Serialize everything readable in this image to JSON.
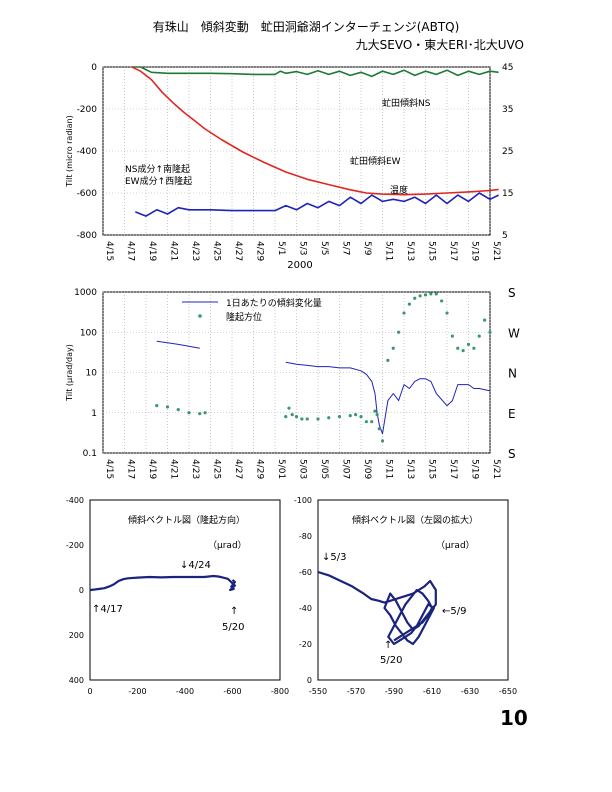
{
  "page": {
    "title": "有珠山　傾斜変動　虻田洞爺湖インターチェンジ(ABTQ)",
    "subtitle": "九大SEVO・東大ERI･北大UVO",
    "page_number": "10"
  },
  "colors": {
    "red": "#e0271f",
    "green": "#1e7a37",
    "blue": "#1f24b8",
    "navy": "#1a237e",
    "teal": "#3a9a6c",
    "gray": "#a9a9a9"
  },
  "chart_data": [
    {
      "type": "line",
      "title": "",
      "xlabel": "2000",
      "ylabel": "Tilt (micro radian)",
      "ylim": [
        -800,
        0
      ],
      "y2lim": [
        5,
        45
      ],
      "grid": true,
      "x_ticks": [
        "4/15",
        "4/17",
        "4/19",
        "4/21",
        "4/23",
        "4/25",
        "4/27",
        "4/29",
        "5/1",
        "5/3",
        "5/5",
        "5/7",
        "5/9",
        "5/11",
        "5/13",
        "5/15",
        "5/17",
        "5/19",
        "5/21"
      ],
      "y_ticks": [
        "0",
        "-200",
        "-400",
        "-600",
        "-800"
      ],
      "y2_ticks": [
        "45",
        "35",
        "25",
        "15",
        "5"
      ],
      "labels": {
        "ns": "虻田傾斜NS",
        "ew": "虻田傾斜EW",
        "temp": "温度",
        "note1": "NS成分↑南隆起",
        "note2": "EW成分↑西隆起"
      },
      "series": [
        {
          "name": "虻田傾斜NS",
          "axis": "left",
          "color": "green",
          "x": [
            16.7,
            17.5,
            18.5,
            20,
            22,
            24,
            26,
            28,
            30,
            30.5,
            31,
            32,
            33,
            34,
            35,
            36,
            37,
            38,
            39,
            40,
            41,
            42,
            43,
            44,
            45,
            46,
            47,
            48,
            49,
            50,
            50.8
          ],
          "y": [
            0,
            0,
            -25,
            -30,
            -30,
            -30,
            -32,
            -35,
            -35,
            -20,
            -30,
            -22,
            -35,
            -18,
            -35,
            -20,
            -40,
            -25,
            -45,
            -20,
            -35,
            -15,
            -40,
            -20,
            -35,
            -15,
            -40,
            -20,
            -35,
            -20,
            -25
          ]
        },
        {
          "name": "虻田傾斜EW",
          "axis": "left",
          "color": "red",
          "x": [
            16.7,
            17.5,
            18.5,
            19.5,
            20.5,
            21.5,
            22.5,
            23.5,
            25,
            27,
            29,
            31,
            33,
            35,
            37,
            38.5,
            40,
            42,
            44,
            46,
            48,
            50,
            50.8
          ],
          "y": [
            0,
            -20,
            -60,
            -120,
            -170,
            -215,
            -255,
            -295,
            -345,
            -405,
            -455,
            -500,
            -535,
            -560,
            -585,
            -600,
            -605,
            -608,
            -605,
            -600,
            -595,
            -588,
            -583
          ]
        },
        {
          "name": "温度",
          "axis": "right",
          "color": "blue",
          "x": [
            17,
            18,
            19,
            20,
            21,
            22,
            24,
            26,
            28,
            30,
            31,
            32,
            33,
            34,
            35,
            36,
            37,
            38,
            39,
            40,
            41,
            42,
            43,
            44,
            45,
            46,
            47,
            48,
            49,
            50,
            50.8
          ],
          "y": [
            10.5,
            9.5,
            11,
            10,
            11.5,
            11,
            11,
            10.8,
            10.8,
            10.8,
            12,
            11,
            12.5,
            11.5,
            13,
            12,
            14,
            12.5,
            14.5,
            13,
            13.5,
            13,
            14,
            12.5,
            14.5,
            12.5,
            14.5,
            13,
            15,
            13.5,
            14.5
          ]
        }
      ]
    },
    {
      "type": "line",
      "title": "",
      "ylabel": "Tilt (μrad/day)",
      "yscale": "log",
      "ylim": [
        0.1,
        1000
      ],
      "grid": true,
      "x_ticks": [
        "4/15",
        "4/17",
        "4/19",
        "4/21",
        "4/23",
        "4/25",
        "4/27",
        "4/29",
        "5/01",
        "5/03",
        "5/05",
        "5/07",
        "5/09",
        "5/11",
        "5/13",
        "5/15",
        "5/17",
        "5/19",
        "5/21"
      ],
      "y_ticks": [
        "1000",
        "100",
        "10",
        "1",
        "0.1"
      ],
      "right_axis_ticks": [
        "S",
        "W",
        "N",
        "E",
        "S"
      ],
      "legend_position": "top",
      "series": [
        {
          "name": "1日あたりの傾斜変化量",
          "color": "blue",
          "style": "line",
          "x": [
            19,
            20,
            21,
            22,
            23,
            31,
            32,
            33,
            34,
            35,
            36,
            37,
            38,
            38.5,
            39,
            39.3,
            39.5,
            39.7,
            40,
            40.5,
            41,
            41.5,
            42,
            42.5,
            43,
            43.5,
            44,
            44.5,
            45,
            46,
            46.5,
            47,
            48,
            48.5,
            49,
            50
          ],
          "y": [
            60,
            55,
            50,
            45,
            40,
            18,
            16,
            15,
            14,
            14,
            13,
            13,
            11,
            9,
            6,
            3,
            1,
            0.5,
            0.3,
            2,
            3,
            2,
            5,
            4,
            6,
            7,
            7,
            6,
            3,
            1.5,
            2,
            5,
            5,
            4,
            4,
            3.5
          ]
        },
        {
          "name": "隆起方位",
          "color": "teal",
          "style": "dots",
          "x": [
            19,
            20,
            21,
            22,
            23,
            23.5,
            31,
            31.3,
            31.6,
            32,
            32.5,
            33,
            34,
            35,
            36,
            37,
            37.5,
            38,
            38.5,
            39,
            39.3,
            39.5,
            39.7,
            40,
            40.5,
            41,
            41.5,
            42,
            42.5,
            43,
            43.5,
            44,
            44.5,
            45,
            45.5,
            46,
            46.5,
            47,
            47.5,
            48,
            48.5,
            49,
            49.5,
            50
          ],
          "y": [
            1.5,
            1.4,
            1.2,
            1.0,
            0.95,
            1.0,
            0.8,
            1.3,
            0.9,
            0.8,
            0.7,
            0.7,
            0.7,
            0.75,
            0.8,
            0.85,
            0.9,
            0.8,
            0.6,
            0.6,
            1.1,
            0.9,
            0.4,
            0.2,
            20,
            40,
            100,
            300,
            500,
            700,
            800,
            850,
            900,
            900,
            600,
            300,
            80,
            40,
            35,
            50,
            40,
            80,
            200,
            100
          ]
        }
      ]
    },
    {
      "type": "scatter",
      "title": "傾斜ベクトル図（隆起方向）",
      "unit": "（μrad）",
      "xlim": [
        0,
        -800
      ],
      "ylim": [
        -400,
        400
      ],
      "x_ticks": [
        "0",
        "-200",
        "-400",
        "-600",
        "-800"
      ],
      "y_ticks": [
        "-400",
        "-200",
        "0",
        "200",
        "400"
      ],
      "annotations": [
        "↑4/17",
        "↓4/24",
        "↑",
        "5/20"
      ],
      "series": [
        {
          "name": "",
          "color": "navy",
          "x": [
            0,
            -20,
            -40,
            -60,
            -80,
            -100,
            -120,
            -140,
            -160,
            -200,
            -250,
            -300,
            -350,
            -380,
            -480,
            -500,
            -520,
            -540,
            -560,
            -580,
            -590,
            -600,
            -610,
            -600,
            -590,
            -605,
            -595,
            -610,
            -600
          ],
          "y": [
            0,
            -2,
            -5,
            -8,
            -15,
            -25,
            -40,
            -48,
            -52,
            -55,
            -58,
            -56,
            -58,
            -58,
            -58,
            -60,
            -62,
            -60,
            -55,
            -50,
            -40,
            -30,
            -20,
            -10,
            0,
            -5,
            -15,
            -35,
            -45
          ]
        }
      ]
    },
    {
      "type": "scatter",
      "title": "傾斜ベクトル図（左図の拡大）",
      "unit": "（μrad）",
      "xlim": [
        -550,
        -650
      ],
      "ylim": [
        -100,
        0
      ],
      "x_ticks": [
        "-550",
        "-570",
        "-590",
        "-610",
        "-630",
        "-650"
      ],
      "y_ticks": [
        "-100",
        "-80",
        "-60",
        "-40",
        "-20",
        "0"
      ],
      "annotations": [
        "↓5/3",
        "←5/9",
        "↑",
        "5/20"
      ],
      "series": [
        {
          "name": "",
          "color": "navy",
          "x": [
            -550,
            -556,
            -562,
            -568,
            -574,
            -578,
            -582,
            -585,
            -588,
            -591,
            -594,
            -597,
            -600,
            -603,
            -606,
            -609,
            -612,
            -612,
            -609,
            -606,
            -603,
            -600,
            -597,
            -594,
            -591,
            -588,
            -585,
            -588,
            -591,
            -594,
            -597,
            -600,
            -603,
            -606,
            -609,
            -611,
            -608,
            -605,
            -602,
            -599,
            -596,
            -593,
            -590,
            -587,
            -590,
            -593,
            -596,
            -599,
            -602,
            -605,
            -608,
            -610,
            -608,
            -605,
            -602,
            -599,
            -596,
            -593,
            -590
          ],
          "y": [
            -60,
            -58,
            -55,
            -52,
            -48,
            -45,
            -44,
            -43,
            -44,
            -45,
            -46,
            -47,
            -48,
            -50,
            -52,
            -55,
            -50,
            -42,
            -38,
            -34,
            -30,
            -28,
            -32,
            -38,
            -44,
            -48,
            -40,
            -36,
            -30,
            -26,
            -22,
            -20,
            -24,
            -30,
            -36,
            -40,
            -42,
            -36,
            -30,
            -26,
            -24,
            -22,
            -20,
            -24,
            -30,
            -36,
            -42,
            -46,
            -50,
            -48,
            -44,
            -40,
            -36,
            -32,
            -30,
            -28,
            -26,
            -24,
            -22
          ]
        }
      ]
    }
  ]
}
